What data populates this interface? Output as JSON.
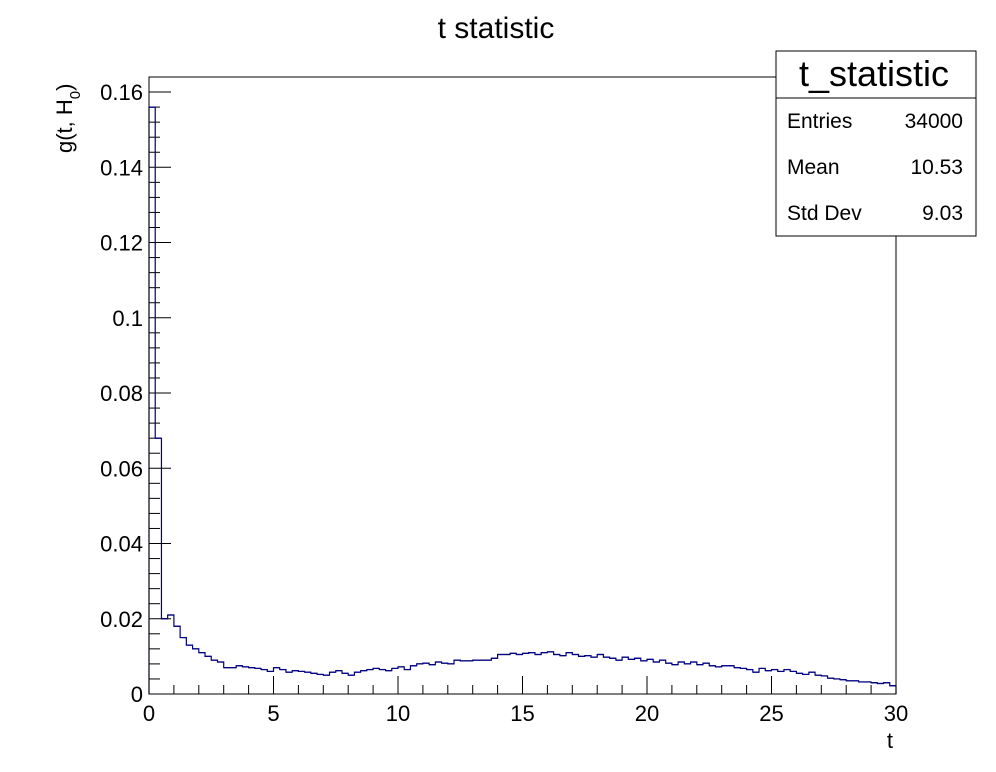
{
  "chart_data": {
    "type": "bar",
    "title": "t statistic",
    "xlabel": "t",
    "ylabel": "g(t, H",
    "ylabel_subscript": "0",
    "ylabel_close": ")",
    "xlim": [
      0,
      30
    ],
    "ylim": [
      0,
      0.164
    ],
    "grid": false,
    "legend": "none",
    "line_color": "#000080",
    "x_ticks": [
      0,
      5,
      10,
      15,
      20,
      25,
      30
    ],
    "x_tick_labels": [
      "0",
      "5",
      "10",
      "15",
      "20",
      "25",
      "30"
    ],
    "y_ticks": [
      0,
      0.02,
      0.04,
      0.06,
      0.08,
      0.1,
      0.12,
      0.14,
      0.16
    ],
    "y_tick_labels": [
      "0",
      "0.02",
      "0.04",
      "0.06",
      "0.08",
      "0.1",
      "0.12",
      "0.14",
      "0.16"
    ],
    "bin_width": 0.25,
    "bin_low_edges": [
      0,
      0.25,
      0.5,
      0.75,
      1,
      1.25,
      1.5,
      1.75,
      2,
      2.25,
      2.5,
      2.75,
      3,
      3.25,
      3.5,
      3.75,
      4,
      4.25,
      4.5,
      4.75,
      5,
      5.25,
      5.5,
      5.75,
      6,
      6.25,
      6.5,
      6.75,
      7,
      7.25,
      7.5,
      7.75,
      8,
      8.25,
      8.5,
      8.75,
      9,
      9.25,
      9.5,
      9.75,
      10,
      10.25,
      10.5,
      10.75,
      11,
      11.25,
      11.5,
      11.75,
      12,
      12.25,
      12.5,
      12.75,
      13,
      13.25,
      13.5,
      13.75,
      14,
      14.25,
      14.5,
      14.75,
      15,
      15.25,
      15.5,
      15.75,
      16,
      16.25,
      16.5,
      16.75,
      17,
      17.25,
      17.5,
      17.75,
      18,
      18.25,
      18.5,
      18.75,
      19,
      19.25,
      19.5,
      19.75,
      20,
      20.25,
      20.5,
      20.75,
      21,
      21.25,
      21.5,
      21.75,
      22,
      22.25,
      22.5,
      22.75,
      23,
      23.25,
      23.5,
      23.75,
      24,
      24.25,
      24.5,
      24.75,
      25,
      25.25,
      25.5,
      25.75,
      26,
      26.25,
      26.5,
      26.75,
      27,
      27.25,
      27.5,
      27.75,
      28,
      28.25,
      28.5,
      28.75,
      29,
      29.25,
      29.5,
      29.75
    ],
    "values": [
      0.156,
      0.068,
      0.02,
      0.021,
      0.018,
      0.015,
      0.013,
      0.012,
      0.011,
      0.01,
      0.009,
      0.0085,
      0.007,
      0.007,
      0.0075,
      0.0072,
      0.007,
      0.0068,
      0.0065,
      0.006,
      0.007,
      0.0065,
      0.0058,
      0.0062,
      0.006,
      0.0058,
      0.0055,
      0.0052,
      0.005,
      0.0058,
      0.0062,
      0.0055,
      0.005,
      0.0058,
      0.0062,
      0.0065,
      0.0068,
      0.0065,
      0.0062,
      0.0068,
      0.0072,
      0.0065,
      0.0075,
      0.008,
      0.0082,
      0.0078,
      0.0085,
      0.0082,
      0.008,
      0.009,
      0.0088,
      0.0088,
      0.009,
      0.009,
      0.009,
      0.0095,
      0.0105,
      0.0105,
      0.0108,
      0.0105,
      0.0108,
      0.011,
      0.0105,
      0.011,
      0.0112,
      0.0105,
      0.0102,
      0.011,
      0.0105,
      0.01,
      0.0102,
      0.0098,
      0.0105,
      0.0098,
      0.0095,
      0.009,
      0.0098,
      0.0092,
      0.0095,
      0.0088,
      0.0092,
      0.0085,
      0.009,
      0.0082,
      0.0078,
      0.0085,
      0.008,
      0.0085,
      0.0078,
      0.0082,
      0.0075,
      0.0072,
      0.0075,
      0.0075,
      0.007,
      0.0068,
      0.0065,
      0.0058,
      0.0068,
      0.0062,
      0.0065,
      0.006,
      0.0065,
      0.006,
      0.0055,
      0.0052,
      0.0058,
      0.005,
      0.0048,
      0.0042,
      0.004,
      0.0038,
      0.0035,
      0.0035,
      0.0032,
      0.0032,
      0.003,
      0.0028,
      0.003,
      0.0022
    ]
  },
  "stats_box": {
    "title": "t_statistic",
    "rows": [
      {
        "label": "Entries",
        "value": "34000"
      },
      {
        "label": "Mean",
        "value": "10.53"
      },
      {
        "label": "Std Dev",
        "value": "9.03"
      }
    ]
  }
}
